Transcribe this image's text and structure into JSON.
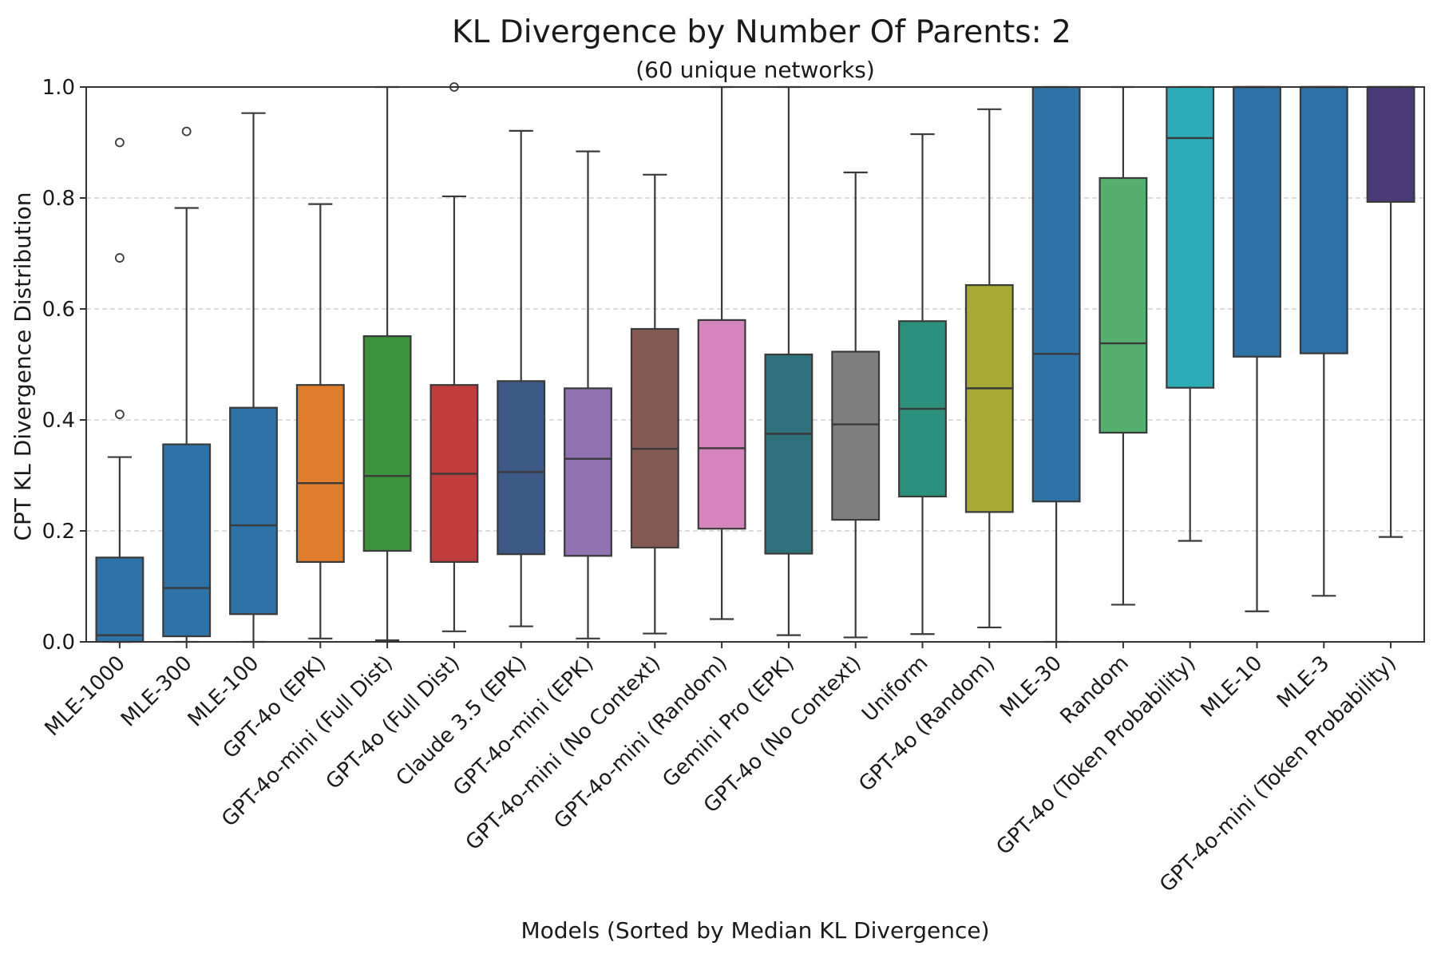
{
  "chart_data": {
    "type": "box",
    "title": "KL Divergence by Number Of Parents: 2",
    "subtitle": "(60 unique networks)",
    "xlabel": "Models (Sorted by Median KL Divergence)",
    "ylabel": "CPT KL Divergence Distribution",
    "ylim": [
      0,
      1
    ],
    "yticks": [
      "0.0",
      "0.2",
      "0.4",
      "0.6",
      "0.8",
      "1.0"
    ],
    "grid": "y-dashed",
    "series": [
      {
        "name": "MLE-1000",
        "color": "#2e73a8",
        "whisker_low": 0.0,
        "q1": 0.0,
        "median": 0.012,
        "q3": 0.152,
        "whisker_high": 0.333,
        "outliers": [
          0.41,
          0.692,
          0.9
        ]
      },
      {
        "name": "MLE-300",
        "color": "#2e73a8",
        "whisker_low": 0.0,
        "q1": 0.01,
        "median": 0.097,
        "q3": 0.356,
        "whisker_high": 0.782,
        "outliers": [
          0.92
        ]
      },
      {
        "name": "MLE-100",
        "color": "#2e73a8",
        "whisker_low": 0.0,
        "q1": 0.05,
        "median": 0.21,
        "q3": 0.422,
        "whisker_high": 0.953,
        "outliers": []
      },
      {
        "name": "GPT-4o (EPK)",
        "color": "#e07d2c",
        "whisker_low": 0.006,
        "q1": 0.144,
        "median": 0.286,
        "q3": 0.463,
        "whisker_high": 0.789,
        "outliers": []
      },
      {
        "name": "GPT-4o-mini (Full Dist)",
        "color": "#3a923a",
        "whisker_low": 0.003,
        "q1": 0.164,
        "median": 0.299,
        "q3": 0.551,
        "whisker_high": 1.0,
        "outliers": []
      },
      {
        "name": "GPT-4o (Full Dist)",
        "color": "#c03d3e",
        "whisker_low": 0.019,
        "q1": 0.144,
        "median": 0.303,
        "q3": 0.463,
        "whisker_high": 0.803,
        "outliers": [
          1.0
        ]
      },
      {
        "name": "Claude 3.5 (EPK)",
        "color": "#3c5a85",
        "whisker_low": 0.028,
        "q1": 0.158,
        "median": 0.306,
        "q3": 0.47,
        "whisker_high": 0.921,
        "outliers": []
      },
      {
        "name": "GPT-4o-mini (EPK)",
        "color": "#9372b2",
        "whisker_low": 0.006,
        "q1": 0.155,
        "median": 0.33,
        "q3": 0.457,
        "whisker_high": 0.884,
        "outliers": []
      },
      {
        "name": "GPT-4o-mini (No Context)",
        "color": "#845b53",
        "whisker_low": 0.015,
        "q1": 0.17,
        "median": 0.348,
        "q3": 0.564,
        "whisker_high": 0.842,
        "outliers": []
      },
      {
        "name": "GPT-4o-mini (Random)",
        "color": "#d684bd",
        "whisker_low": 0.041,
        "q1": 0.204,
        "median": 0.349,
        "q3": 0.58,
        "whisker_high": 1.0,
        "outliers": []
      },
      {
        "name": "Gemini Pro (EPK)",
        "color": "#2f727e",
        "whisker_low": 0.012,
        "q1": 0.159,
        "median": 0.375,
        "q3": 0.518,
        "whisker_high": 1.0,
        "outliers": []
      },
      {
        "name": "GPT-4o (No Context)",
        "color": "#7f7f7f",
        "whisker_low": 0.008,
        "q1": 0.22,
        "median": 0.392,
        "q3": 0.523,
        "whisker_high": 0.846,
        "outliers": []
      },
      {
        "name": "Uniform",
        "color": "#2c917c",
        "whisker_low": 0.014,
        "q1": 0.262,
        "median": 0.42,
        "q3": 0.578,
        "whisker_high": 0.915,
        "outliers": []
      },
      {
        "name": "GPT-4o (Random)",
        "color": "#a8aa35",
        "whisker_low": 0.026,
        "q1": 0.234,
        "median": 0.457,
        "q3": 0.643,
        "whisker_high": 0.96,
        "outliers": []
      },
      {
        "name": "MLE-30",
        "color": "#2e73a8",
        "whisker_low": 0.0,
        "q1": 0.253,
        "median": 0.519,
        "q3": 1.0,
        "whisker_high": 1.0,
        "outliers": []
      },
      {
        "name": "Random",
        "color": "#55b06f",
        "whisker_low": 0.067,
        "q1": 0.377,
        "median": 0.538,
        "q3": 0.836,
        "whisker_high": 1.0,
        "outliers": []
      },
      {
        "name": "GPT-4o (Token Probability)",
        "color": "#2eabb8",
        "whisker_low": 0.182,
        "q1": 0.458,
        "median": 0.908,
        "q3": 1.0,
        "whisker_high": 1.0,
        "outliers": []
      },
      {
        "name": "MLE-10",
        "color": "#2e73a8",
        "whisker_low": 0.055,
        "q1": 0.514,
        "median": 1.0,
        "q3": 1.0,
        "whisker_high": 1.0,
        "outliers": []
      },
      {
        "name": "MLE-3",
        "color": "#2e73a8",
        "whisker_low": 0.083,
        "q1": 0.52,
        "median": 1.0,
        "q3": 1.0,
        "whisker_high": 1.0,
        "outliers": []
      },
      {
        "name": "GPT-4o-mini (Token Probability)",
        "color": "#4a3b78",
        "whisker_low": 0.189,
        "q1": 0.793,
        "median": 1.0,
        "q3": 1.0,
        "whisker_high": 1.0,
        "outliers": []
      }
    ]
  }
}
